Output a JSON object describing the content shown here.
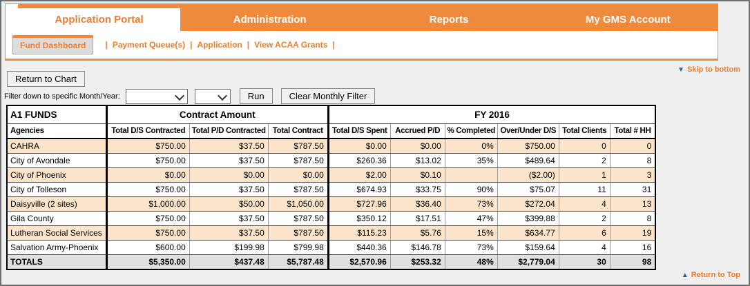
{
  "colors": {
    "orange": "#EF8A3D",
    "orange_text": "#ED7D2F",
    "peach_row": "#FBE4C9",
    "totals_row": "#E0E0E0",
    "subtab_bg": "#DCDCDC",
    "arrow_blue": "#2B5FA5"
  },
  "tabs": {
    "active_label": "Application Portal",
    "items": [
      "Administration",
      "Reports",
      "My GMS Account"
    ]
  },
  "subnav": {
    "active": "Fund Dashboard",
    "separator": "|",
    "links": [
      "Payment Queue(s)",
      "Application",
      "View ACAA Grants"
    ]
  },
  "links": {
    "skip_to_bottom": "Skip to bottom",
    "return_to_top": "Return to Top",
    "down_icon": "▼",
    "up_icon": "▲"
  },
  "toolbar": {
    "return_to_chart": "Return to Chart",
    "filter_label": "Filter down to specific Month/Year:",
    "run": "Run",
    "clear": "Clear Monthly Filter",
    "month_value": "",
    "year_value": ""
  },
  "table": {
    "group_headers": {
      "funds": "A1 FUNDS",
      "contract": "Contract Amount",
      "fy": "FY 2016"
    },
    "columns": [
      "Agencies",
      "Total D/S Contracted",
      "Total P/D Contracted",
      "Total Contract",
      "Total D/S Spent",
      "Accrued P/D",
      "% Completed",
      "Over/Under D/S",
      "Total Clients",
      "Total # HH"
    ],
    "rows": [
      {
        "agency": "CAHRA",
        "cells": [
          "$750.00",
          "$37.50",
          "$787.50",
          "$0.00",
          "$0.00",
          "0%",
          "$750.00",
          "0",
          "0"
        ]
      },
      {
        "agency": "City of Avondale",
        "cells": [
          "$750.00",
          "$37.50",
          "$787.50",
          "$260.36",
          "$13.02",
          "35%",
          "$489.64",
          "2",
          "8"
        ]
      },
      {
        "agency": "City of Phoenix",
        "cells": [
          "$0.00",
          "$0.00",
          "$0.00",
          "$2.00",
          "$0.10",
          "",
          "($2.00)",
          "1",
          "3"
        ]
      },
      {
        "agency": "City of Tolleson",
        "cells": [
          "$750.00",
          "$37.50",
          "$787.50",
          "$674.93",
          "$33.75",
          "90%",
          "$75.07",
          "11",
          "31"
        ]
      },
      {
        "agency": "Daisyville (2 sites)",
        "cells": [
          "$1,000.00",
          "$50.00",
          "$1,050.00",
          "$727.96",
          "$36.40",
          "73%",
          "$272.04",
          "4",
          "13"
        ]
      },
      {
        "agency": "Gila County",
        "cells": [
          "$750.00",
          "$37.50",
          "$787.50",
          "$350.12",
          "$17.51",
          "47%",
          "$399.88",
          "2",
          "8"
        ]
      },
      {
        "agency": "Lutheran Social Services",
        "cells": [
          "$750.00",
          "$37.50",
          "$787.50",
          "$115.23",
          "$5.76",
          "15%",
          "$634.77",
          "6",
          "19"
        ]
      },
      {
        "agency": "Salvation Army-Phoenix",
        "cells": [
          "$600.00",
          "$199.98",
          "$799.98",
          "$440.36",
          "$146.78",
          "73%",
          "$159.64",
          "4",
          "16"
        ]
      }
    ],
    "totals": {
      "label": "TOTALS",
      "cells": [
        "$5,350.00",
        "$437.48",
        "$5,787.48",
        "$2,570.96",
        "$253.32",
        "48%",
        "$2,779.04",
        "30",
        "98"
      ]
    }
  }
}
